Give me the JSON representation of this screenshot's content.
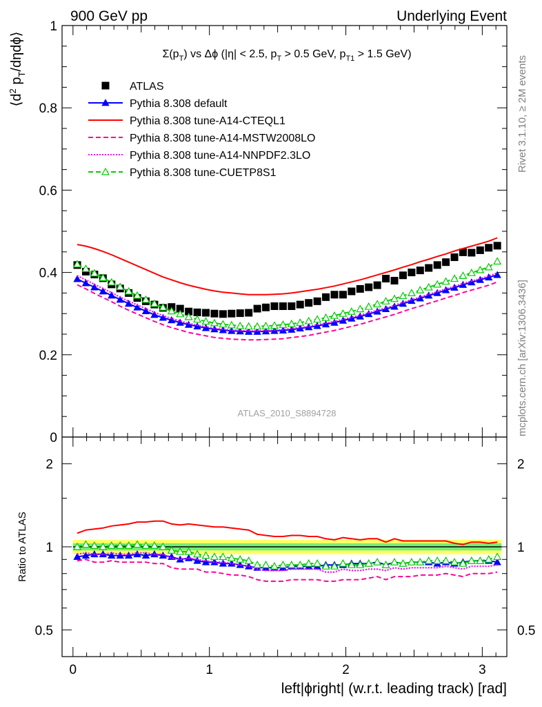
{
  "header": {
    "left_label": "900 GeV pp",
    "right_label": "Underlying Event",
    "side_label_top": "Rivet 3.1.10, ≥ 2M events",
    "side_label_bottom": "mcplots.cern.ch [arXiv:1306.3436]",
    "watermark": "ATLAS_2010_S8894728"
  },
  "chart_data": [
    {
      "type": "line",
      "title": "Σ(p_T) vs Δφ (|η| < 2.5, p_T > 0.5 GeV, p_T1 > 1.5 GeV)",
      "ylabel": "⟨d² p_T/dηdφ⟩",
      "xlabel": "",
      "xlim": [
        -0.08,
        3.18
      ],
      "ylim": [
        0,
        1.0
      ],
      "yticks": [
        0,
        0.2,
        0.4,
        0.6,
        0.8,
        1
      ],
      "ytick_labels": [
        "0",
        "0.2",
        "0.4",
        "0.6",
        "0.8",
        "1"
      ],
      "legend_position": "top-left",
      "x": [
        0.0314,
        0.0942,
        0.157,
        0.2199,
        0.2827,
        0.3456,
        0.4084,
        0.4712,
        0.5341,
        0.5969,
        0.6597,
        0.7226,
        0.7854,
        0.8482,
        0.9111,
        0.9739,
        1.0367,
        1.0996,
        1.1624,
        1.2252,
        1.2881,
        1.3509,
        1.4137,
        1.4765,
        1.5394,
        1.6022,
        1.665,
        1.7279,
        1.7907,
        1.8535,
        1.9164,
        1.9792,
        2.042,
        2.1049,
        2.1677,
        2.2305,
        2.2934,
        2.3562,
        2.419,
        2.4819,
        2.5447,
        2.6075,
        2.6704,
        2.7332,
        2.796,
        2.8588,
        2.9217,
        2.9845,
        3.0473,
        3.1102
      ],
      "series": [
        {
          "name": "ATLAS",
          "color": "#000000",
          "marker": "square",
          "line": "none",
          "values": [
            0.418,
            0.402,
            0.395,
            0.386,
            0.371,
            0.361,
            0.35,
            0.338,
            0.33,
            0.322,
            0.314,
            0.316,
            0.312,
            0.305,
            0.303,
            0.302,
            0.3,
            0.299,
            0.3,
            0.301,
            0.302,
            0.312,
            0.315,
            0.318,
            0.318,
            0.318,
            0.322,
            0.326,
            0.33,
            0.34,
            0.346,
            0.346,
            0.354,
            0.36,
            0.364,
            0.369,
            0.385,
            0.38,
            0.393,
            0.4,
            0.405,
            0.411,
            0.418,
            0.425,
            0.437,
            0.449,
            0.448,
            0.454,
            0.46,
            0.465
          ]
        },
        {
          "name": "Pythia 8.308 default",
          "color": "#0000ff",
          "marker": "triangle",
          "line": "solid",
          "values": [
            0.384,
            0.374,
            0.364,
            0.354,
            0.344,
            0.334,
            0.324,
            0.315,
            0.306,
            0.297,
            0.29,
            0.284,
            0.278,
            0.273,
            0.269,
            0.265,
            0.262,
            0.26,
            0.258,
            0.257,
            0.256,
            0.256,
            0.257,
            0.258,
            0.259,
            0.261,
            0.264,
            0.267,
            0.27,
            0.274,
            0.278,
            0.283,
            0.288,
            0.293,
            0.299,
            0.305,
            0.311,
            0.317,
            0.324,
            0.331,
            0.337,
            0.344,
            0.35,
            0.357,
            0.363,
            0.37,
            0.376,
            0.382,
            0.388,
            0.394
          ]
        },
        {
          "name": "Pythia 8.308 tune-A14-CTEQL1",
          "color": "#ff0000",
          "marker": "none",
          "line": "solid",
          "values": [
            0.468,
            0.464,
            0.458,
            0.451,
            0.443,
            0.434,
            0.425,
            0.416,
            0.407,
            0.398,
            0.389,
            0.382,
            0.375,
            0.369,
            0.364,
            0.359,
            0.355,
            0.352,
            0.35,
            0.348,
            0.346,
            0.346,
            0.346,
            0.347,
            0.348,
            0.35,
            0.353,
            0.356,
            0.359,
            0.363,
            0.367,
            0.372,
            0.377,
            0.382,
            0.388,
            0.394,
            0.4,
            0.406,
            0.413,
            0.419,
            0.426,
            0.432,
            0.439,
            0.445,
            0.452,
            0.458,
            0.464,
            0.47,
            0.476,
            0.484
          ]
        },
        {
          "name": "Pythia 8.308 tune-A14-MSTW2008LO",
          "color": "#ff0099",
          "marker": "none",
          "line": "dashed",
          "values": [
            0.37,
            0.36,
            0.349,
            0.339,
            0.329,
            0.318,
            0.308,
            0.299,
            0.29,
            0.281,
            0.273,
            0.266,
            0.26,
            0.254,
            0.25,
            0.246,
            0.242,
            0.24,
            0.238,
            0.237,
            0.236,
            0.236,
            0.237,
            0.238,
            0.239,
            0.242,
            0.244,
            0.247,
            0.251,
            0.255,
            0.259,
            0.264,
            0.269,
            0.274,
            0.28,
            0.286,
            0.292,
            0.298,
            0.305,
            0.312,
            0.318,
            0.325,
            0.331,
            0.338,
            0.344,
            0.351,
            0.357,
            0.363,
            0.369,
            0.377
          ]
        },
        {
          "name": "Pythia 8.308 tune-A14-NNPDF2.3LO",
          "color": "#ff00ff",
          "marker": "none",
          "line": "dotted",
          "values": [
            0.392,
            0.382,
            0.371,
            0.361,
            0.351,
            0.34,
            0.33,
            0.321,
            0.312,
            0.303,
            0.295,
            0.288,
            0.282,
            0.276,
            0.272,
            0.268,
            0.264,
            0.262,
            0.26,
            0.259,
            0.258,
            0.258,
            0.259,
            0.26,
            0.261,
            0.264,
            0.266,
            0.269,
            0.273,
            0.277,
            0.281,
            0.286,
            0.291,
            0.296,
            0.302,
            0.308,
            0.314,
            0.32,
            0.327,
            0.334,
            0.34,
            0.347,
            0.353,
            0.36,
            0.366,
            0.373,
            0.379,
            0.385,
            0.391,
            0.399
          ]
        },
        {
          "name": "Pythia 8.308 tune-CUETP8S1",
          "color": "#00cc00",
          "marker": "open-triangle",
          "line": "dashed",
          "values": [
            0.42,
            0.409,
            0.398,
            0.387,
            0.376,
            0.365,
            0.354,
            0.344,
            0.334,
            0.324,
            0.315,
            0.306,
            0.299,
            0.292,
            0.286,
            0.281,
            0.277,
            0.274,
            0.272,
            0.27,
            0.269,
            0.269,
            0.27,
            0.271,
            0.273,
            0.275,
            0.278,
            0.282,
            0.286,
            0.29,
            0.295,
            0.3,
            0.305,
            0.311,
            0.317,
            0.323,
            0.33,
            0.336,
            0.343,
            0.35,
            0.357,
            0.364,
            0.371,
            0.378,
            0.385,
            0.392,
            0.399,
            0.406,
            0.413,
            0.427
          ]
        }
      ]
    },
    {
      "type": "line",
      "title": "",
      "ylabel": "Ratio to ATLAS",
      "xlabel": "left|ϕright| (w.r.t. leading track) [rad]",
      "xlim": [
        -0.08,
        3.18
      ],
      "ylim": [
        0.4,
        2.5
      ],
      "log_y": true,
      "yticks": [
        0.5,
        1,
        2
      ],
      "ytick_labels": [
        "0.5",
        "1",
        "2"
      ],
      "ytick_labels_right": [
        "0.5",
        "1",
        "2"
      ],
      "xticks": [
        0,
        1,
        2,
        3
      ],
      "xtick_labels": [
        "0",
        "1",
        "2",
        "3"
      ],
      "reference": 1.0,
      "band_yellow": [
        0.94,
        1.06
      ],
      "band_green": [
        0.97,
        1.03
      ],
      "x": [
        0.0314,
        0.0942,
        0.157,
        0.2199,
        0.2827,
        0.3456,
        0.4084,
        0.4712,
        0.5341,
        0.5969,
        0.6597,
        0.7226,
        0.7854,
        0.8482,
        0.9111,
        0.9739,
        1.0367,
        1.0996,
        1.1624,
        1.2252,
        1.2881,
        1.3509,
        1.4137,
        1.4765,
        1.5394,
        1.6022,
        1.665,
        1.7279,
        1.7907,
        1.8535,
        1.9164,
        1.9792,
        2.042,
        2.1049,
        2.1677,
        2.2305,
        2.2934,
        2.3562,
        2.419,
        2.4819,
        2.5447,
        2.6075,
        2.6704,
        2.7332,
        2.796,
        2.8588,
        2.9217,
        2.9845,
        3.0473,
        3.1102
      ],
      "series": [
        {
          "name": "Pythia 8.308 default",
          "color": "#0000ff",
          "marker": "triangle",
          "line": "solid",
          "values": [
            0.92,
            0.93,
            0.94,
            0.94,
            0.93,
            0.93,
            0.93,
            0.94,
            0.93,
            0.94,
            0.93,
            0.92,
            0.9,
            0.91,
            0.89,
            0.88,
            0.88,
            0.87,
            0.87,
            0.86,
            0.85,
            0.84,
            0.84,
            0.84,
            0.84,
            0.85,
            0.85,
            0.85,
            0.85,
            0.86,
            0.86,
            0.86,
            0.87,
            0.87,
            0.87,
            0.88,
            0.86,
            0.88,
            0.87,
            0.88,
            0.88,
            0.88,
            0.87,
            0.88,
            0.87,
            0.88,
            0.89,
            0.89,
            0.89,
            0.88
          ]
        },
        {
          "name": "Pythia 8.308 tune-A14-CTEQL1",
          "color": "#ff0000",
          "marker": "none",
          "line": "solid",
          "values": [
            1.12,
            1.15,
            1.16,
            1.17,
            1.19,
            1.2,
            1.21,
            1.23,
            1.23,
            1.24,
            1.24,
            1.21,
            1.2,
            1.21,
            1.2,
            1.19,
            1.18,
            1.18,
            1.17,
            1.16,
            1.15,
            1.11,
            1.1,
            1.09,
            1.09,
            1.1,
            1.1,
            1.09,
            1.09,
            1.07,
            1.06,
            1.08,
            1.07,
            1.06,
            1.07,
            1.07,
            1.04,
            1.07,
            1.05,
            1.05,
            1.05,
            1.05,
            1.05,
            1.05,
            1.03,
            1.02,
            1.04,
            1.04,
            1.03,
            1.04
          ]
        },
        {
          "name": "Pythia 8.308 tune-A14-MSTW2008LO",
          "color": "#ff0099",
          "marker": "none",
          "line": "dashed",
          "values": [
            0.89,
            0.9,
            0.88,
            0.88,
            0.89,
            0.88,
            0.88,
            0.88,
            0.88,
            0.87,
            0.87,
            0.84,
            0.83,
            0.83,
            0.83,
            0.81,
            0.81,
            0.8,
            0.79,
            0.79,
            0.78,
            0.76,
            0.75,
            0.75,
            0.75,
            0.76,
            0.76,
            0.76,
            0.76,
            0.75,
            0.75,
            0.76,
            0.76,
            0.76,
            0.77,
            0.78,
            0.76,
            0.78,
            0.78,
            0.78,
            0.79,
            0.79,
            0.79,
            0.8,
            0.79,
            0.78,
            0.8,
            0.8,
            0.8,
            0.81
          ]
        },
        {
          "name": "Pythia 8.308 tune-A14-NNPDF2.3LO",
          "color": "#ff00ff",
          "marker": "none",
          "line": "dotted",
          "values": [
            0.94,
            0.95,
            0.94,
            0.94,
            0.95,
            0.94,
            0.94,
            0.95,
            0.95,
            0.94,
            0.94,
            0.91,
            0.9,
            0.91,
            0.9,
            0.89,
            0.88,
            0.88,
            0.87,
            0.86,
            0.85,
            0.83,
            0.82,
            0.82,
            0.82,
            0.83,
            0.83,
            0.83,
            0.83,
            0.81,
            0.81,
            0.83,
            0.82,
            0.82,
            0.83,
            0.83,
            0.82,
            0.84,
            0.83,
            0.84,
            0.84,
            0.84,
            0.84,
            0.85,
            0.84,
            0.83,
            0.85,
            0.85,
            0.85,
            0.86
          ]
        },
        {
          "name": "Pythia 8.308 tune-CUETP8S1",
          "color": "#00cc00",
          "marker": "open-triangle",
          "line": "dashed",
          "values": [
            1.0,
            1.02,
            1.01,
            1.0,
            1.01,
            1.01,
            1.01,
            1.02,
            1.01,
            1.01,
            1.0,
            0.97,
            0.96,
            0.96,
            0.94,
            0.93,
            0.92,
            0.92,
            0.91,
            0.9,
            0.89,
            0.86,
            0.86,
            0.85,
            0.86,
            0.86,
            0.86,
            0.87,
            0.87,
            0.85,
            0.85,
            0.87,
            0.86,
            0.86,
            0.87,
            0.88,
            0.86,
            0.88,
            0.87,
            0.88,
            0.88,
            0.89,
            0.89,
            0.89,
            0.88,
            0.87,
            0.89,
            0.89,
            0.9,
            0.92
          ]
        }
      ]
    }
  ]
}
